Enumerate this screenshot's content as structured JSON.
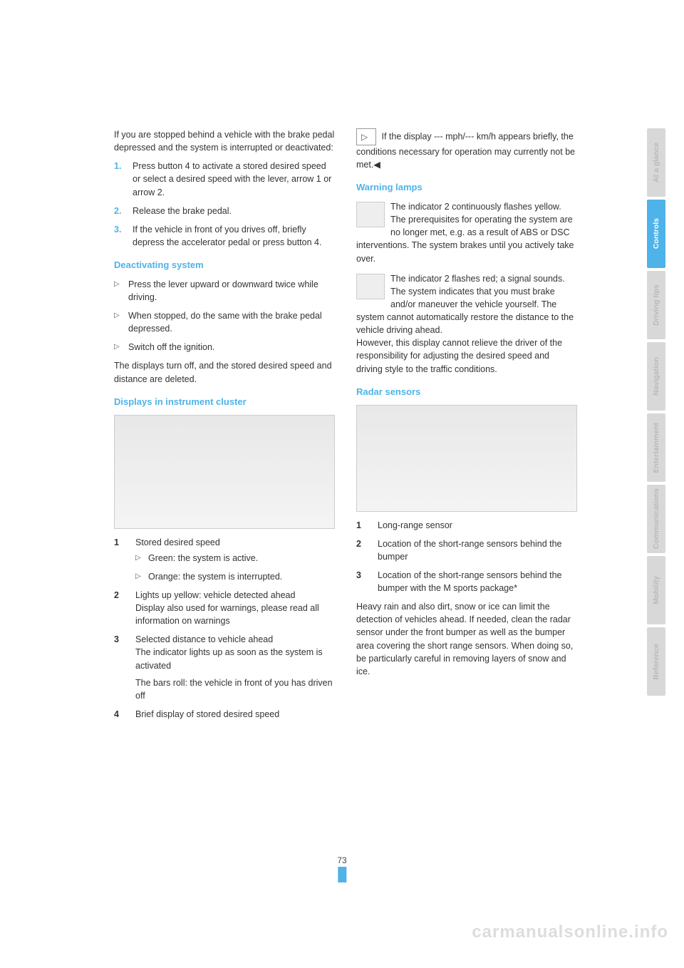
{
  "colors": {
    "accent": "#4eb3e8",
    "tab_gray": "#d8d8d8",
    "tab_gray_text": "#b9b9b9",
    "tab_active_text": "#ffffff"
  },
  "page_number": "73",
  "watermark": "carmanualsonline.info",
  "tabs": [
    {
      "label": "At a glance",
      "active": false
    },
    {
      "label": "Controls",
      "active": true
    },
    {
      "label": "Driving tips",
      "active": false
    },
    {
      "label": "Navigation",
      "active": false
    },
    {
      "label": "Entertainment",
      "active": false
    },
    {
      "label": "Communications",
      "active": false
    },
    {
      "label": "Mobility",
      "active": false
    },
    {
      "label": "Reference",
      "active": false
    }
  ],
  "left": {
    "intro": "If you are stopped behind a vehicle with the brake pedal depressed and the system is interrupted or deactivated:",
    "steps": [
      "Press button 4 to activate a stored desired speed or select a desired speed with the lever, arrow 1 or arrow 2.",
      "Release the brake pedal.",
      "If the vehicle in front of you drives off, briefly depress the accelerator pedal or press button 4."
    ],
    "h_deact": "Deactivating system",
    "deact": [
      "Press the lever upward or downward twice while driving.",
      "When stopped, do the same with the brake pedal depressed.",
      "Switch off the ignition."
    ],
    "deact_after": "The displays turn off, and the stored desired speed and distance are deleted.",
    "h_disp": "Displays in instrument cluster",
    "items": {
      "i1": "Stored desired speed",
      "i1a": "Green: the system is active.",
      "i1b": "Orange: the system is interrupted.",
      "i2a": "Lights up yellow: vehicle detected ahead",
      "i2b": "Display also used for warnings, please read all information on warnings",
      "i3a": "Selected distance to vehicle ahead",
      "i3b": "The indicator lights up as soon as the system is activated",
      "i3c": "The bars roll: the vehicle in front of you has driven off",
      "i4": "Brief display of stored desired speed"
    }
  },
  "right": {
    "note": "If the display --- mph/--- km/h appears briefly, the conditions necessary for operation may currently not be met.◀",
    "h_warn": "Warning lamps",
    "w1a": "The indicator 2 continuously flashes yellow.",
    "w1b": "The prerequisites for operating the system are no longer met, e.g. as a result of ABS or DSC interventions. The system brakes until you actively take over.",
    "w2a": "The indicator 2 flashes red; a signal sounds.",
    "w2b": "The system indicates that you must brake and/or maneuver the vehicle yourself. The system cannot automatically restore the distance to the vehicle driving ahead.",
    "w2c": "However, this display cannot relieve the driver of the responsibility for adjusting the desired speed and driving style to the traffic conditions.",
    "h_radar": "Radar sensors",
    "r1": "Long-range sensor",
    "r2": "Location of the short-range sensors behind the bumper",
    "r3": "Location of the short-range sensors behind the bumper with the M sports package*",
    "r_after": "Heavy rain and also dirt, snow or ice can limit the detection of vehicles ahead. If needed, clean the radar sensor under the front bumper as well as the bumper area covering the short range sensors. When doing so, be particularly careful in removing layers of snow and ice."
  }
}
